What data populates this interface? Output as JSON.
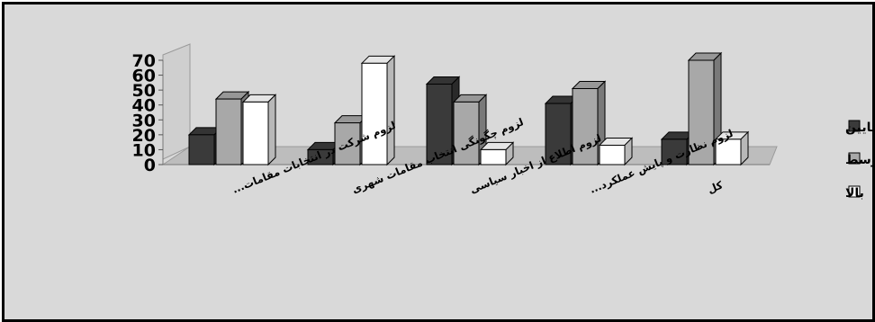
{
  "chart_data": {
    "type": "bar",
    "categories": [
      "لزوم شرکت در انتخابات مقامات...",
      "لزوم چگونگی انتخاب مقامات شهری",
      "لزوم اطلاع از اخبار سیاسی",
      "لزوم نظارت و پایش عملکرد...",
      "کل"
    ],
    "series": [
      {
        "name": "پایین",
        "values": [
          20,
          10,
          54,
          41,
          17
        ],
        "color": "#3a3a3a"
      },
      {
        "name": "متوسط",
        "values": [
          44,
          28,
          42,
          51,
          70
        ],
        "color": "#a8a8a8"
      },
      {
        "name": "بالا",
        "values": [
          42,
          68,
          10,
          13,
          17
        ],
        "color": "#ffffff"
      }
    ],
    "y_ticks": [
      "0",
      "10",
      "20",
      "30",
      "40",
      "50",
      "60",
      "70"
    ],
    "ylim": [
      0,
      70
    ],
    "legend_position": "right",
    "style": "3d-clustered-column"
  }
}
